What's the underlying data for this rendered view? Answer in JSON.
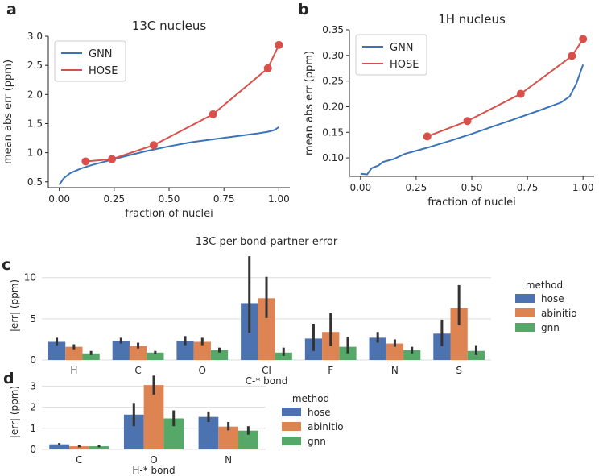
{
  "panels": [
    {
      "letter": "a",
      "title": "13C nucleus",
      "xlabel": "fraction of nuclei",
      "ylabel": "mean abs err (ppm)",
      "xlim": [
        -0.05,
        1.05
      ],
      "ylim": [
        0.4,
        3.0
      ],
      "xticks": [
        0.0,
        0.25,
        0.5,
        0.75,
        1.0
      ],
      "xtick_labels": [
        "0.00",
        "0.25",
        "0.50",
        "0.75",
        "1.00"
      ],
      "yticks": [
        0.5,
        1.0,
        1.5,
        2.0,
        2.5,
        3.0
      ],
      "ytick_labels": [
        "0.5",
        "1.0",
        "1.5",
        "2.0",
        "2.5",
        "3.0"
      ],
      "legend": [
        "GNN",
        "HOSE"
      ],
      "GNN": {
        "x": [
          0.0,
          0.02,
          0.05,
          0.1,
          0.15,
          0.2,
          0.25,
          0.3,
          0.4,
          0.5,
          0.6,
          0.7,
          0.8,
          0.9,
          0.95,
          0.98,
          1.0
        ],
        "y": [
          0.45,
          0.56,
          0.65,
          0.73,
          0.79,
          0.84,
          0.89,
          0.94,
          1.03,
          1.11,
          1.18,
          1.23,
          1.28,
          1.33,
          1.36,
          1.39,
          1.44
        ]
      },
      "HOSE": {
        "x": [
          0.12,
          0.24,
          0.43,
          0.7,
          0.95,
          1.0
        ],
        "y": [
          0.85,
          0.89,
          1.13,
          1.66,
          2.45,
          2.85
        ]
      }
    },
    {
      "letter": "b",
      "title": "1H nucleus",
      "xlabel": "fraction of nuclei",
      "ylabel": "mean abs err (ppm)",
      "xlim": [
        -0.05,
        1.05
      ],
      "ylim": [
        0.064,
        0.35
      ],
      "xticks": [
        0.0,
        0.25,
        0.5,
        0.75,
        1.0
      ],
      "xtick_labels": [
        "0.00",
        "0.25",
        "0.50",
        "0.75",
        "1.00"
      ],
      "yticks": [
        0.1,
        0.15,
        0.2,
        0.25,
        0.3,
        0.35
      ],
      "ytick_labels": [
        "0.10",
        "0.15",
        "0.20",
        "0.25",
        "0.30",
        "0.35"
      ],
      "legend": [
        "GNN",
        "HOSE"
      ],
      "GNN": {
        "x": [
          0.0,
          0.03,
          0.05,
          0.08,
          0.1,
          0.15,
          0.2,
          0.3,
          0.4,
          0.5,
          0.6,
          0.7,
          0.8,
          0.9,
          0.94,
          0.97,
          1.0
        ],
        "y": [
          0.069,
          0.068,
          0.08,
          0.085,
          0.092,
          0.098,
          0.108,
          0.12,
          0.133,
          0.147,
          0.162,
          0.177,
          0.192,
          0.208,
          0.22,
          0.245,
          0.282
        ]
      },
      "HOSE": {
        "x": [
          0.3,
          0.48,
          0.72,
          0.95,
          1.0
        ],
        "y": [
          0.142,
          0.172,
          0.225,
          0.299,
          0.332
        ]
      }
    },
    {
      "letter": "c",
      "title": "13C per-bond-partner error",
      "xlabel": "C-* bond",
      "ylabel": "|err| (ppm)",
      "categories": [
        "H",
        "C",
        "O",
        "Cl",
        "F",
        "N",
        "S"
      ],
      "yticks": [
        0,
        5,
        10
      ],
      "ytick_labels": [
        "0",
        "5",
        "10"
      ],
      "ylim": [
        0,
        13.2
      ],
      "legend_title": "method",
      "series": [
        {
          "name": "hose",
          "values": [
            2.2,
            2.3,
            2.3,
            6.9,
            2.6,
            2.7,
            3.2
          ],
          "err": [
            [
              1.8,
              2.7
            ],
            [
              2.0,
              2.7
            ],
            [
              1.8,
              2.9
            ],
            [
              3.3,
              12.6
            ],
            [
              1.1,
              4.4
            ],
            [
              2.1,
              3.4
            ],
            [
              1.7,
              4.9
            ]
          ]
        },
        {
          "name": "abinitio",
          "values": [
            1.6,
            1.7,
            2.2,
            7.5,
            3.4,
            2.0,
            6.3
          ],
          "err": [
            [
              1.3,
              1.9
            ],
            [
              1.4,
              2.1
            ],
            [
              1.8,
              2.7
            ],
            [
              5.1,
              10.1
            ],
            [
              1.7,
              5.7
            ],
            [
              1.6,
              2.5
            ],
            [
              4.2,
              9.1
            ]
          ]
        },
        {
          "name": "gnn",
          "values": [
            0.8,
            0.9,
            1.2,
            0.9,
            1.6,
            1.2,
            1.1
          ],
          "err": [
            [
              0.6,
              1.1
            ],
            [
              0.7,
              1.1
            ],
            [
              0.9,
              1.5
            ],
            [
              0.5,
              1.5
            ],
            [
              0.8,
              2.8
            ],
            [
              0.8,
              1.6
            ],
            [
              0.6,
              1.8
            ]
          ]
        }
      ]
    },
    {
      "letter": "d",
      "xlabel": "H-* bond",
      "ylabel": "|err| (ppm)",
      "categories": [
        "C",
        "O",
        "N"
      ],
      "yticks": [
        0,
        1,
        2,
        3
      ],
      "ytick_labels": [
        "0",
        "1",
        "2",
        "3"
      ],
      "ylim": [
        0,
        3.55
      ],
      "legend_title": "method",
      "series": [
        {
          "name": "hose",
          "values": [
            0.24,
            1.65,
            1.54
          ],
          "err": [
            [
              0.19,
              0.3
            ],
            [
              1.1,
              2.2
            ],
            [
              1.3,
              1.8
            ]
          ]
        },
        {
          "name": "abinitio",
          "values": [
            0.15,
            3.05,
            1.08
          ],
          "err": [
            [
              0.1,
              0.2
            ],
            [
              2.6,
              3.5
            ],
            [
              0.9,
              1.3
            ]
          ]
        },
        {
          "name": "gnn",
          "values": [
            0.15,
            1.47,
            0.89
          ],
          "err": [
            [
              0.1,
              0.2
            ],
            [
              1.1,
              1.85
            ],
            [
              0.7,
              1.1
            ]
          ]
        }
      ]
    }
  ],
  "colors": {
    "GNN": "#3b73b9",
    "HOSE": "#d9504b",
    "hose": "#4c72b0",
    "abinitio": "#dd8452",
    "gnn": "#55a868",
    "err": "#333333"
  }
}
